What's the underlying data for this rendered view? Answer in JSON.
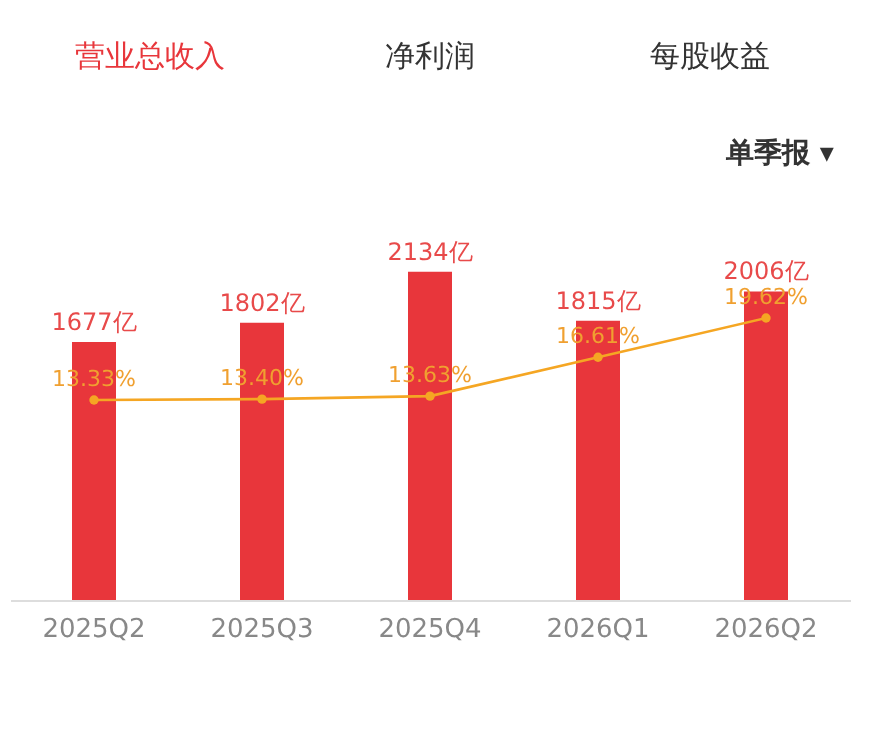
{
  "chart_data": {
    "type": "bar",
    "categories": [
      "2025Q2",
      "2025Q3",
      "2025Q4",
      "2026Q1",
      "2026Q2"
    ],
    "annotations": [
      "营业总收入",
      "净利润",
      "每股收益",
      "单季报 ▾"
    ],
    "series": [
      {
        "color": "#e8363b",
        "values": [
          1677,
          1802,
          2134,
          1815,
          2006
        ],
        "value_labels": [
          "1677亿",
          "1802亿",
          "2134亿",
          "1815亿",
          "2006亿"
        ]
      },
      {
        "type": "line",
        "axis": "y2",
        "color": "#f5a623",
        "marker": "circle",
        "values": [
          13.33,
          13.4,
          13.63,
          16.61,
          19.62
        ],
        "value_labels": [
          "13.33%",
          "13.40%",
          "13.63%",
          "16.61%",
          "19.62%"
        ]
      }
    ],
    "ylim": [
      0,
      3900
    ],
    "y2lim": [
      -2,
      44
    ],
    "tick_labels": "x",
    "grid": false
  }
}
